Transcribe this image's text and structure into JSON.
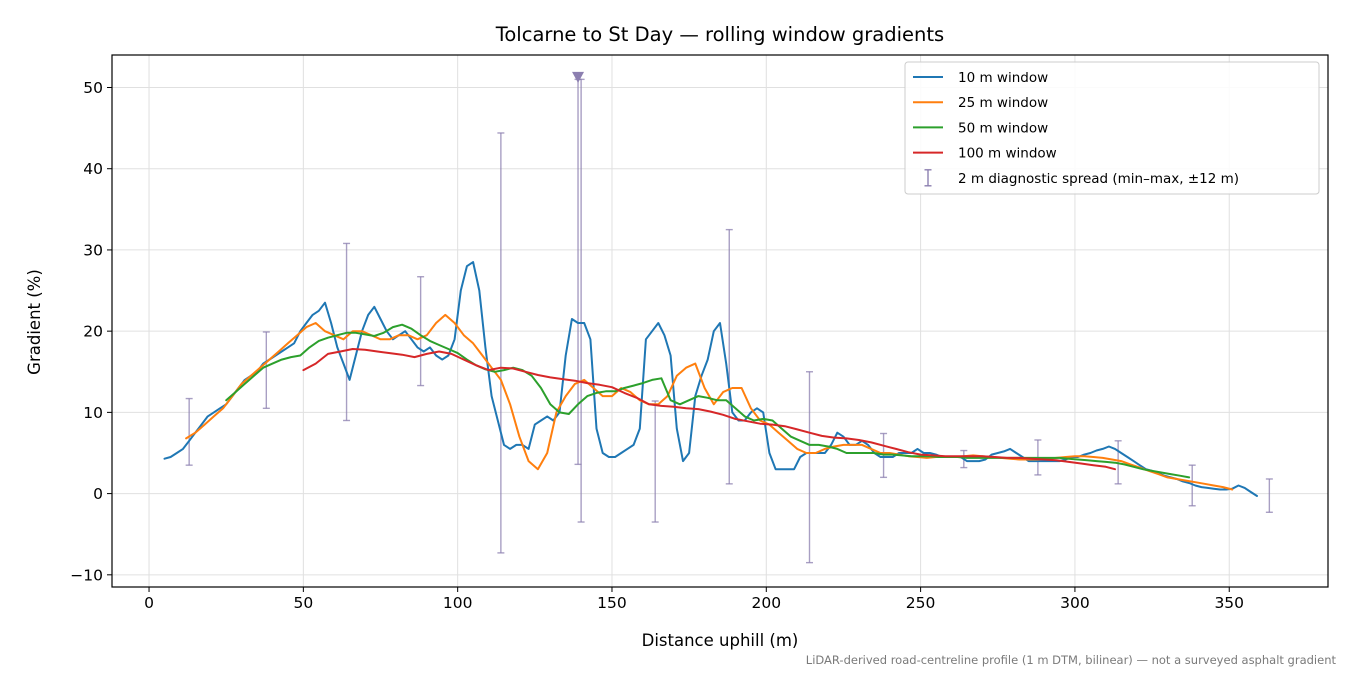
{
  "chart_data": {
    "type": "line",
    "title": "Tolcarne to St Day — rolling window gradients",
    "xlabel": "Distance uphill (m)",
    "ylabel": "Gradient (%)",
    "xlim": [
      -12,
      382
    ],
    "ylim": [
      -11.5,
      54
    ],
    "xticks": [
      0,
      50,
      100,
      150,
      200,
      250,
      300,
      350
    ],
    "yticks": [
      -10,
      0,
      10,
      20,
      30,
      40,
      50
    ],
    "grid": true,
    "legend_position": "upper-right",
    "footnote": "LiDAR-derived road-centreline profile (1 m DTM, bilinear) — not a surveyed asphalt gradient",
    "series": [
      {
        "name": "10 m window",
        "color": "#1f77b4",
        "x": [
          5,
          7,
          9,
          11,
          13,
          15,
          17,
          19,
          21,
          23,
          25,
          27,
          29,
          31,
          33,
          35,
          37,
          39,
          41,
          43,
          45,
          47,
          49,
          51,
          53,
          55,
          57,
          59,
          61,
          63,
          65,
          67,
          69,
          71,
          73,
          75,
          77,
          79,
          81,
          83,
          85,
          87,
          89,
          91,
          93,
          95,
          97,
          99,
          101,
          103,
          105,
          107,
          109,
          111,
          113,
          115,
          117,
          119,
          121,
          123,
          125,
          127,
          129,
          131,
          133,
          135,
          137,
          139,
          141,
          143,
          145,
          147,
          149,
          151,
          153,
          155,
          157,
          159,
          161,
          163,
          165,
          167,
          169,
          171,
          173,
          175,
          177,
          179,
          181,
          183,
          185,
          187,
          189,
          191,
          193,
          195,
          197,
          199,
          201,
          203,
          205,
          207,
          209,
          211,
          213,
          215,
          217,
          219,
          221,
          223,
          225,
          227,
          229,
          231,
          233,
          235,
          237,
          239,
          241,
          243,
          245,
          247,
          249,
          251,
          253,
          255,
          257,
          259,
          261,
          263,
          265,
          267,
          269,
          271,
          273,
          275,
          277,
          279,
          281,
          283,
          285,
          287,
          289,
          291,
          293,
          295,
          297,
          299,
          301,
          303,
          305,
          307,
          309,
          311,
          313,
          315,
          317,
          319,
          321,
          323,
          325,
          327,
          329,
          331,
          333,
          335,
          337,
          339,
          341,
          343,
          345,
          347,
          349,
          351,
          353,
          355,
          357,
          359
        ],
        "values": [
          4.3,
          4.5,
          5,
          5.5,
          6.5,
          7.5,
          8.5,
          9.5,
          10,
          10.5,
          11,
          12,
          13,
          14,
          14.5,
          15,
          16,
          16.5,
          17,
          17.5,
          18,
          18.5,
          20,
          21,
          22,
          22.5,
          23.5,
          21,
          18,
          16,
          14,
          17,
          20,
          22,
          23,
          21.5,
          20,
          19,
          19.5,
          20,
          19,
          18,
          17.5,
          18,
          17,
          16.5,
          17,
          19,
          25,
          28,
          28.5,
          25,
          18,
          12,
          9,
          6,
          5.5,
          6,
          6,
          5.5,
          8.5,
          9,
          9.5,
          9,
          10,
          17,
          21.5,
          21,
          21,
          19,
          8,
          5,
          4.5,
          4.5,
          5,
          5.5,
          6,
          8,
          19,
          20,
          21,
          19.5,
          17,
          8,
          4,
          5,
          12,
          14.5,
          16.5,
          20,
          21,
          16,
          10,
          9,
          9,
          10,
          10.5,
          10,
          5,
          3,
          3,
          3,
          3,
          4.5,
          5,
          5,
          5,
          5,
          6,
          7.5,
          7,
          6,
          6,
          6.5,
          6,
          5,
          4.5,
          4.5,
          4.5,
          5,
          5,
          5,
          5.5,
          5,
          5,
          4.8,
          4.5,
          4.5,
          4.5,
          4.5,
          4,
          4,
          4,
          4.2,
          4.8,
          5,
          5.2,
          5.5,
          5,
          4.5,
          4,
          4,
          4,
          4,
          4,
          4,
          4.2,
          4.5,
          4.5,
          4.8,
          5,
          5.3,
          5.5,
          5.8,
          5.5,
          5,
          4.5,
          4,
          3.5,
          3,
          2.8,
          2.5,
          2.2,
          2,
          1.8,
          1.5,
          1.3,
          1,
          0.8,
          0.7,
          0.6,
          0.5,
          0.5,
          0.6,
          1,
          0.7,
          0.2,
          -0.3
        ]
      },
      {
        "name": "25 m window",
        "color": "#ff7f0e",
        "x": [
          12,
          15,
          18,
          21,
          24,
          27,
          30,
          33,
          36,
          39,
          42,
          45,
          48,
          51,
          54,
          57,
          60,
          63,
          66,
          69,
          72,
          75,
          78,
          81,
          84,
          87,
          90,
          93,
          96,
          99,
          102,
          105,
          108,
          111,
          114,
          117,
          120,
          123,
          126,
          129,
          132,
          135,
          138,
          141,
          144,
          147,
          150,
          153,
          156,
          159,
          162,
          165,
          168,
          171,
          174,
          177,
          180,
          183,
          186,
          189,
          192,
          195,
          198,
          201,
          204,
          207,
          210,
          213,
          216,
          219,
          222,
          225,
          228,
          231,
          234,
          237,
          240,
          243,
          246,
          249,
          252,
          255,
          258,
          261,
          264,
          267,
          270,
          273,
          276,
          279,
          282,
          285,
          288,
          291,
          294,
          297,
          300,
          303,
          306,
          309,
          312,
          315,
          318,
          321,
          324,
          327,
          330,
          333,
          336,
          339,
          342,
          345,
          348,
          351
        ],
        "values": [
          6.8,
          7.5,
          8.5,
          9.5,
          10.5,
          12,
          13.5,
          14.5,
          15.5,
          16.5,
          17.5,
          18.5,
          19.5,
          20.5,
          21,
          20,
          19.5,
          19,
          20,
          20,
          19.5,
          19,
          19,
          19.5,
          19.5,
          19,
          19.5,
          21,
          22,
          21,
          19.5,
          18.5,
          17,
          15.5,
          14,
          11,
          7,
          4,
          3,
          5,
          10,
          12,
          13.5,
          14,
          13,
          12,
          12,
          13,
          12.5,
          11.5,
          11,
          11,
          12,
          14.5,
          15.5,
          16,
          13,
          11,
          12.5,
          13,
          13,
          10.5,
          9,
          8.5,
          7.5,
          6.5,
          5.5,
          5,
          5,
          5.5,
          5.8,
          6,
          6,
          6,
          5.5,
          5,
          5,
          4.8,
          4.6,
          4.5,
          4.4,
          4.5,
          4.5,
          4.5,
          4.6,
          4.7,
          4.6,
          4.5,
          4.4,
          4.3,
          4.2,
          4.2,
          4.2,
          4.3,
          4.4,
          4.5,
          4.6,
          4.6,
          4.5,
          4.4,
          4.2,
          4,
          3.6,
          3.2,
          2.8,
          2.4,
          2,
          1.8,
          1.6,
          1.4,
          1.2,
          1,
          0.8,
          0.5
        ]
      },
      {
        "name": "50 m window",
        "color": "#2ca02c",
        "x": [
          25,
          28,
          31,
          34,
          37,
          40,
          43,
          46,
          49,
          52,
          55,
          58,
          61,
          64,
          67,
          70,
          73,
          76,
          79,
          82,
          85,
          88,
          91,
          94,
          97,
          100,
          103,
          106,
          109,
          112,
          115,
          118,
          121,
          124,
          127,
          130,
          133,
          136,
          139,
          142,
          145,
          148,
          151,
          154,
          157,
          160,
          163,
          166,
          169,
          172,
          175,
          178,
          181,
          184,
          187,
          190,
          193,
          196,
          199,
          202,
          205,
          208,
          211,
          214,
          217,
          220,
          223,
          226,
          229,
          232,
          235,
          238,
          241,
          244,
          247,
          250,
          253,
          256,
          259,
          262,
          265,
          268,
          271,
          274,
          277,
          280,
          283,
          286,
          289,
          292,
          295,
          298,
          301,
          304,
          307,
          310,
          313,
          316,
          319,
          322,
          325,
          328,
          331,
          334,
          337
        ],
        "values": [
          11.5,
          12.5,
          13.5,
          14.5,
          15.5,
          16,
          16.5,
          16.8,
          17,
          18,
          18.8,
          19.2,
          19.5,
          19.8,
          19.8,
          19.6,
          19.4,
          19.8,
          20.5,
          20.8,
          20.3,
          19.5,
          18.8,
          18.3,
          17.8,
          17.3,
          16.5,
          15.8,
          15.3,
          15,
          15.2,
          15.5,
          15.2,
          14.5,
          13,
          11,
          10,
          9.8,
          11,
          12,
          12.4,
          12.6,
          12.6,
          13,
          13.3,
          13.6,
          14,
          14.2,
          11.5,
          11,
          11.5,
          12,
          11.8,
          11.5,
          11.5,
          10.5,
          9.5,
          9,
          9.2,
          9,
          8,
          7,
          6.5,
          6,
          6,
          5.8,
          5.5,
          5,
          5,
          5,
          5,
          4.8,
          4.8,
          4.7,
          4.6,
          4.6,
          4.6,
          4.5,
          4.5,
          4.5,
          4.4,
          4.4,
          4.4,
          4.4,
          4.4,
          4.4,
          4.4,
          4.4,
          4.4,
          4.4,
          4.4,
          4.3,
          4.2,
          4.1,
          4,
          3.9,
          3.8,
          3.6,
          3.3,
          3,
          2.8,
          2.6,
          2.4,
          2.2,
          2
        ]
      },
      {
        "name": "100 m window",
        "color": "#d62728",
        "x": [
          50,
          54,
          58,
          62,
          66,
          70,
          74,
          78,
          82,
          86,
          90,
          94,
          98,
          102,
          106,
          110,
          114,
          118,
          122,
          126,
          130,
          134,
          138,
          142,
          146,
          150,
          154,
          158,
          162,
          166,
          170,
          174,
          178,
          182,
          186,
          190,
          194,
          198,
          202,
          206,
          210,
          214,
          218,
          222,
          226,
          230,
          234,
          238,
          242,
          246,
          250,
          254,
          258,
          262,
          266,
          270,
          274,
          278,
          282,
          286,
          290,
          294,
          298,
          302,
          306,
          310,
          313
        ],
        "values": [
          15.2,
          16,
          17.2,
          17.5,
          17.8,
          17.7,
          17.5,
          17.3,
          17.1,
          16.8,
          17.2,
          17.5,
          17.2,
          16.5,
          15.8,
          15.2,
          15.5,
          15.4,
          15,
          14.6,
          14.3,
          14.1,
          13.9,
          13.6,
          13.4,
          13.1,
          12.4,
          11.8,
          11,
          10.8,
          10.7,
          10.5,
          10.4,
          10.1,
          9.7,
          9.2,
          8.9,
          8.6,
          8.5,
          8.3,
          7.9,
          7.5,
          7.1,
          6.9,
          6.8,
          6.6,
          6.3,
          5.9,
          5.5,
          5.1,
          4.8,
          4.7,
          4.6,
          4.6,
          4.6,
          4.6,
          4.5,
          4.4,
          4.4,
          4.3,
          4.2,
          4.1,
          3.9,
          3.7,
          3.5,
          3.3,
          3
        ]
      }
    ],
    "errorbars": {
      "name": "2 m diagnostic spread (min–max, ±12 m)",
      "color": "#8c7fb0",
      "x": [
        13,
        38,
        64,
        88,
        114,
        139,
        140,
        164,
        188,
        214,
        238,
        264,
        288,
        314,
        338,
        363
      ],
      "lower": [
        3.5,
        10.5,
        9,
        13.3,
        -7.3,
        3.6,
        -3.5,
        -3.5,
        1.2,
        -8.5,
        2,
        3.2,
        2.3,
        1.2,
        -1.5,
        -2.3
      ],
      "upper": [
        11.7,
        19.9,
        30.8,
        26.7,
        44.4,
        51,
        51,
        11.4,
        32.5,
        15,
        7.4,
        5.3,
        6.6,
        6.5,
        3.5,
        1.8
      ],
      "clipped_marker": {
        "x": 139,
        "y": 51.3
      }
    }
  }
}
